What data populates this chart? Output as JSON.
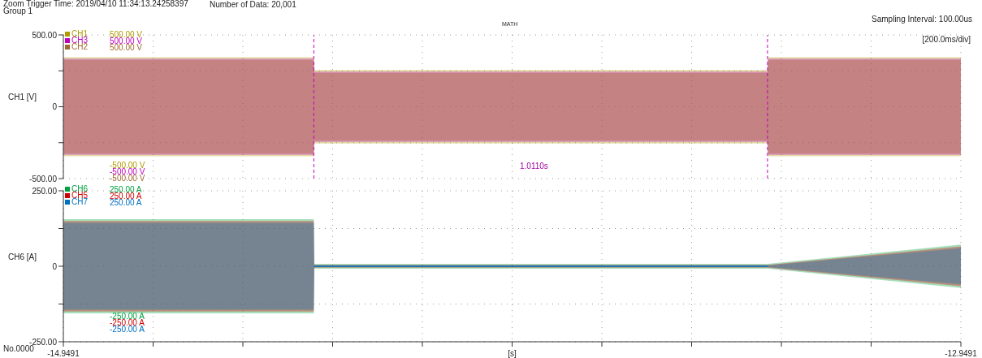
{
  "chart_data": [
    {
      "type": "line",
      "title": "Zoom Trigger Time: 2019/04/10 11:34:13.24258397",
      "ylabel": "CH1 [V]",
      "annotations": [
        "Number of Data: 20,001",
        "Group 1",
        "Sampling Interval:  100.00us",
        "MATH",
        "[200.0ms/div]",
        "500.00 V",
        "500.00 V",
        "500.00 V",
        "-500.00 V",
        "-500.00 V",
        "-500.00 V",
        "1.0110s"
      ],
      "x": [
        -14.9491,
        -14.391,
        -14.39,
        -13.38,
        -13.379,
        -12.9491
      ],
      "series": [
        {
          "name": "CH1",
          "color": "#b09a00",
          "values": [
            null,
            null,
            null,
            null,
            null,
            null
          ],
          "lower": [
            -345,
            -345,
            -255,
            -255,
            -345,
            -345
          ],
          "upper": [
            345,
            345,
            255,
            255,
            345,
            345
          ]
        },
        {
          "name": "CH3",
          "color": "#c000c0",
          "values": [
            null,
            null,
            null,
            null,
            null,
            null
          ],
          "lower": [
            -335,
            -335,
            -245,
            -245,
            -335,
            -335
          ],
          "upper": [
            335,
            335,
            245,
            245,
            335,
            335
          ]
        },
        {
          "name": "CH2",
          "color": "#a06a30",
          "values": [
            null,
            null,
            null,
            null,
            null,
            null
          ],
          "lower": [
            -325,
            -325,
            -235,
            -235,
            -325,
            -325
          ],
          "upper": [
            325,
            325,
            235,
            235,
            325,
            325
          ]
        }
      ],
      "xlim": [
        -14.9491,
        -12.9491
      ],
      "xticks": [
        {
          "value": -14.9491,
          "label": null
        },
        {
          "value": -14.7491,
          "label": null
        },
        {
          "value": -14.5491,
          "label": null
        },
        {
          "value": -14.3491,
          "label": null
        },
        {
          "value": -14.1491,
          "label": null
        },
        {
          "value": -13.9491,
          "label": null
        },
        {
          "value": -13.7491,
          "label": null
        },
        {
          "value": -13.5491,
          "label": null
        },
        {
          "value": -13.3491,
          "label": null
        },
        {
          "value": -13.1491,
          "label": null
        },
        {
          "value": -12.9491,
          "label": null
        }
      ],
      "ylim": [
        -500,
        500
      ],
      "yticks": [
        {
          "value": -500,
          "label": "-500.00"
        },
        {
          "value": -250,
          "label": null
        },
        0,
        {
          "value": 250,
          "label": null
        },
        {
          "value": 500,
          "label": "500.00"
        }
      ],
      "ref_lines": [
        {
          "axis": "x",
          "value": -14.391,
          "color": "#c000c0",
          "line_style": "dashed"
        },
        {
          "axis": "x",
          "value": -13.38,
          "color": "#c000c0",
          "line_style": "dashed"
        }
      ],
      "grid": true,
      "legend": "top left",
      "tick_labels": "y"
    },
    {
      "type": "line",
      "xlabel": "[s]",
      "ylabel": "CH6 [A]",
      "annotations": [
        "No.0000",
        "250.00 A",
        "250.00 A",
        "250.00 A",
        "-250.00 A",
        "-250.00 A",
        "-250.00 A"
      ],
      "x": [
        -14.9491,
        -14.391,
        -14.39,
        -13.38,
        -13.379,
        -12.9491
      ],
      "series": [
        {
          "name": "CH6",
          "color": "#00a040",
          "values": [
            null,
            null,
            null,
            null,
            null,
            null
          ],
          "lower": [
            -156,
            -156,
            -8,
            -8,
            -8,
            -72
          ],
          "upper": [
            156,
            156,
            8,
            8,
            8,
            72
          ]
        },
        {
          "name": "CH5",
          "color": "#d00000",
          "values": [
            null,
            null,
            null,
            null,
            null,
            null
          ],
          "lower": [
            -150,
            -150,
            -5,
            -5,
            -5,
            -66
          ],
          "upper": [
            150,
            150,
            5,
            5,
            5,
            66
          ]
        },
        {
          "name": "CH7",
          "color": "#0070c0",
          "values": [
            null,
            null,
            0,
            0,
            0,
            null
          ],
          "lower": [
            -144,
            -144,
            -3,
            -3,
            -3,
            -60
          ],
          "upper": [
            144,
            144,
            3,
            3,
            3,
            60
          ]
        }
      ],
      "xlim": [
        -14.9491,
        -12.9491
      ],
      "xticks": [
        {
          "value": -14.9491,
          "label": "-14.9491"
        },
        {
          "value": -14.7491,
          "label": null
        },
        {
          "value": -14.5491,
          "label": null
        },
        {
          "value": -14.3491,
          "label": null
        },
        {
          "value": -14.1491,
          "label": null
        },
        {
          "value": -13.9491,
          "label": null
        },
        {
          "value": -13.7491,
          "label": null
        },
        {
          "value": -13.5491,
          "label": null
        },
        {
          "value": -13.3491,
          "label": null
        },
        {
          "value": -13.1491,
          "label": null
        },
        {
          "value": -12.9491,
          "label": "-12.9491"
        }
      ],
      "ylim": [
        -250,
        250
      ],
      "yticks": [
        {
          "value": -250,
          "label": "-250.00"
        },
        {
          "value": -125,
          "label": null
        },
        0,
        {
          "value": 125,
          "label": null
        },
        {
          "value": 250,
          "label": "250.00"
        }
      ],
      "grid": true,
      "legend": "top left"
    }
  ]
}
